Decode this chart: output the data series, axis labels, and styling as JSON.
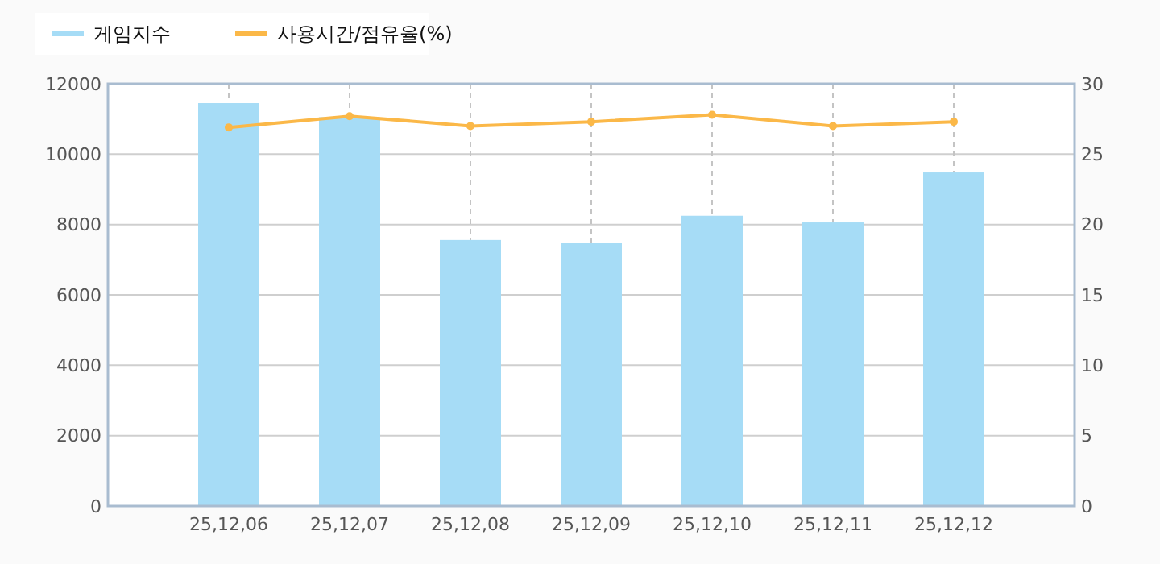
{
  "chart_data": {
    "type": "bar",
    "categories": [
      "25,12,06",
      "25,12,07",
      "25,12,08",
      "25,12,09",
      "25,12,10",
      "25,12,11",
      "25,12,12"
    ],
    "series": [
      {
        "name": "게임지수",
        "color": "#a6dcf6",
        "values": [
          11450,
          11050,
          7560,
          7470,
          8250,
          8060,
          9480
        ]
      },
      {
        "name": "사용시간/점유율(%)",
        "type": "line",
        "axis": "y2",
        "color": "#fbb848",
        "marker": "circle",
        "values": [
          26.9,
          27.7,
          27.0,
          27.3,
          27.8,
          27.0,
          27.3
        ]
      }
    ],
    "ylim": [
      0,
      12000
    ],
    "yticks": [
      0,
      2000,
      4000,
      6000,
      8000,
      10000,
      12000
    ],
    "y2lim": [
      0,
      30
    ],
    "y2ticks": [
      0,
      5,
      10,
      15,
      20,
      25,
      30
    ],
    "grid": true,
    "legend": "top left"
  }
}
